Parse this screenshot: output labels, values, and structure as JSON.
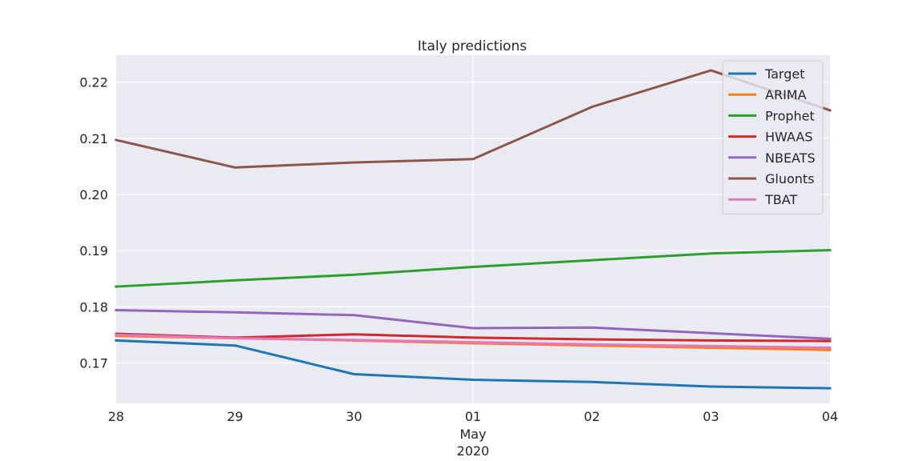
{
  "chart_data": {
    "type": "line",
    "title": "Italy predictions",
    "xlabel": "",
    "ylabel": "",
    "x": [
      "28",
      "29",
      "30",
      "01",
      "02",
      "03",
      "04"
    ],
    "x_secondary_label": [
      "May",
      "2020"
    ],
    "ylim": [
      0.1628,
      0.2248
    ],
    "yticks": [
      "0.17",
      "0.18",
      "0.19",
      "0.20",
      "0.21",
      "0.22"
    ],
    "grid": true,
    "legend_position": "top-right",
    "series": [
      {
        "name": "Target",
        "color": "#1f77b4",
        "values": [
          0.174,
          0.1731,
          0.168,
          0.167,
          0.1666,
          0.1658,
          0.1655
        ]
      },
      {
        "name": "ARIMA",
        "color": "#ff7f0e",
        "values": [
          0.1748,
          0.1744,
          0.174,
          0.1735,
          0.1731,
          0.1727,
          0.1723
        ]
      },
      {
        "name": "Prophet",
        "color": "#2ca02c",
        "values": [
          0.1836,
          0.1847,
          0.1857,
          0.1871,
          0.1883,
          0.1895,
          0.1901
        ]
      },
      {
        "name": "HWAAS",
        "color": "#d62728",
        "values": [
          0.1752,
          0.1745,
          0.1751,
          0.1745,
          0.1742,
          0.174,
          0.1739
        ]
      },
      {
        "name": "NBEATS",
        "color": "#9467bd",
        "values": [
          0.1794,
          0.179,
          0.1785,
          0.1762,
          0.1763,
          0.1753,
          0.1743
        ]
      },
      {
        "name": "Gluonts",
        "color": "#8c564b",
        "values": [
          0.2097,
          0.2048,
          0.2057,
          0.2063,
          0.2156,
          0.2221,
          0.215
        ]
      },
      {
        "name": "TBAT",
        "color": "#e377c2",
        "values": [
          0.175,
          0.1744,
          0.1741,
          0.1737,
          0.1733,
          0.173,
          0.1727
        ]
      }
    ]
  }
}
